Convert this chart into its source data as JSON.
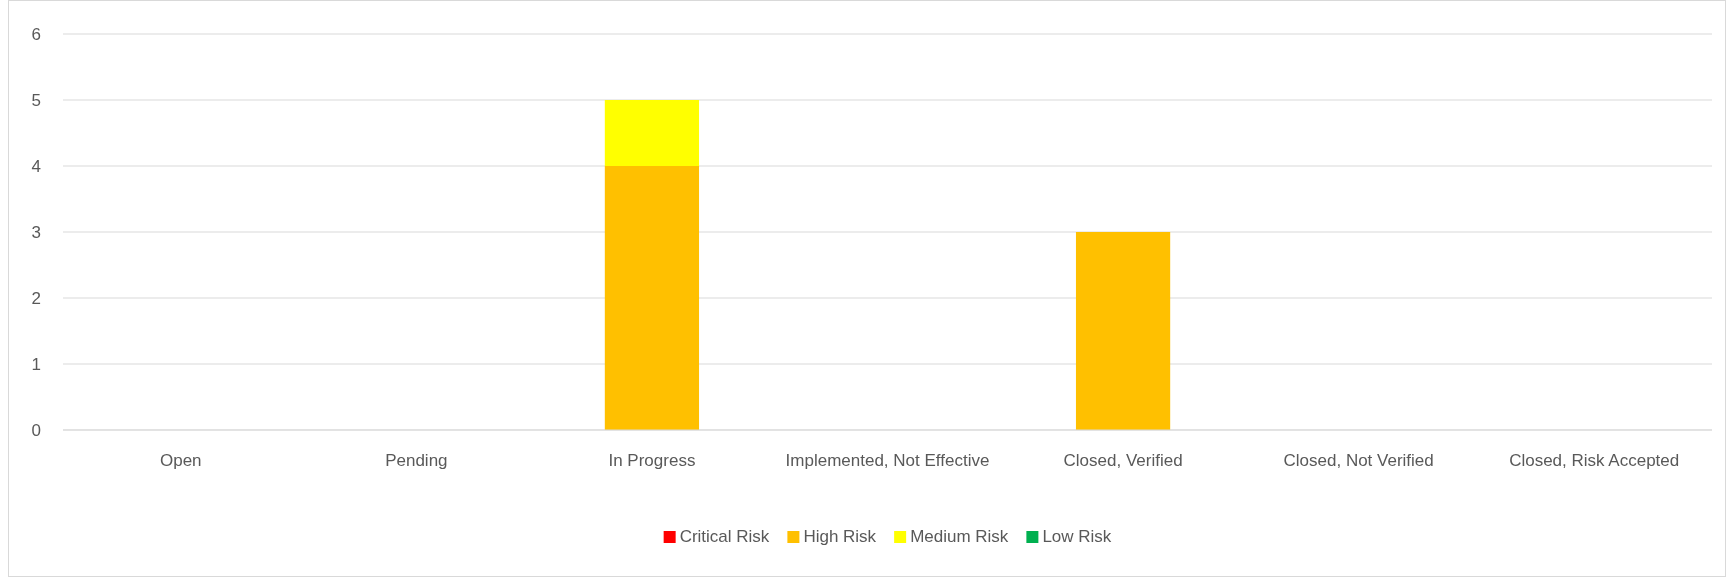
{
  "chart_data": {
    "type": "bar",
    "stacked": true,
    "categories": [
      "Open",
      "Pending",
      "In Progress",
      "Implemented, Not Effective",
      "Closed, Verified",
      "Closed, Not Verified",
      "Closed, Risk Accepted"
    ],
    "series": [
      {
        "name": "Critical Risk",
        "color": "#ff0000",
        "values": [
          0,
          0,
          0,
          0,
          0,
          0,
          0
        ]
      },
      {
        "name": "High Risk",
        "color": "#ffc000",
        "values": [
          0,
          0,
          4,
          0,
          3,
          0,
          0
        ]
      },
      {
        "name": "Medium Risk",
        "color": "#ffff00",
        "values": [
          0,
          0,
          1,
          0,
          0,
          0,
          0
        ]
      },
      {
        "name": "Low Risk",
        "color": "#00b050",
        "values": [
          0,
          0,
          0,
          0,
          0,
          0,
          0
        ]
      }
    ],
    "ylim": [
      0,
      6
    ],
    "yticks": [
      0,
      1,
      2,
      3,
      4,
      5,
      6
    ],
    "grid": "y",
    "legend": "bottom"
  }
}
